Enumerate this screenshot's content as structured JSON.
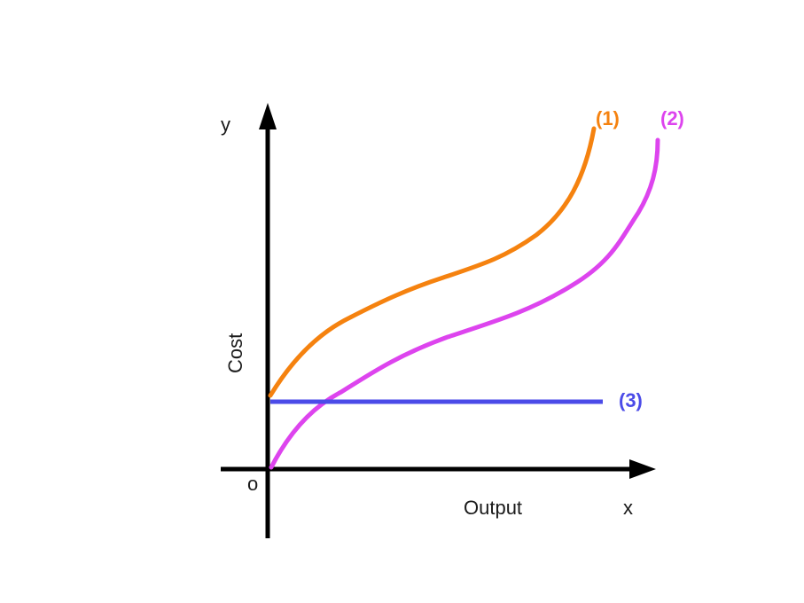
{
  "axes": {
    "y_symbol": "y",
    "x_symbol": "x",
    "origin": "o",
    "y_label": "Cost",
    "x_label": "Output"
  },
  "curves": [
    {
      "id": "curve-1",
      "label": "(1)",
      "color": "#f5820f"
    },
    {
      "id": "curve-2",
      "label": "(2)",
      "color": "#dd44ee"
    },
    {
      "id": "curve-3",
      "label": "(3)",
      "color": "#4b4be8"
    }
  ],
  "colors": {
    "axis": "#000000"
  }
}
